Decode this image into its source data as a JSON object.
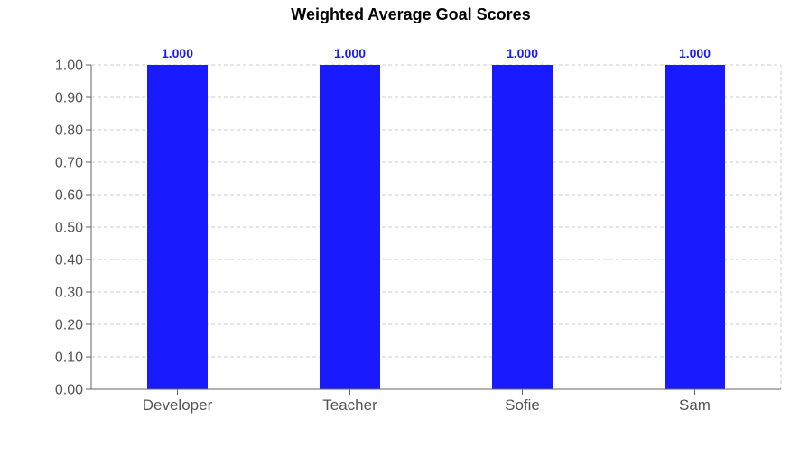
{
  "chart_data": {
    "type": "bar",
    "title": "Weighted Average Goal Scores",
    "xlabel": "",
    "ylabel": "",
    "categories": [
      "Developer",
      "Teacher",
      "Sofie",
      "Sam"
    ],
    "values": [
      1.0,
      1.0,
      1.0,
      1.0
    ],
    "data_labels": [
      "1.000",
      "1.000",
      "1.000",
      "1.000"
    ],
    "ylim": [
      0,
      1.0
    ],
    "yticks": [
      0.0,
      0.1,
      0.2,
      0.3,
      0.4,
      0.5,
      0.6,
      0.7,
      0.8,
      0.9,
      1.0
    ],
    "ytick_labels": [
      "0.00",
      "0.10",
      "0.20",
      "0.30",
      "0.40",
      "0.50",
      "0.60",
      "0.70",
      "0.80",
      "0.90",
      "1.00"
    ],
    "grid": true,
    "legend": "none",
    "colors": {
      "bar": "#1a1aff",
      "value_label": "#1a1aff",
      "grid": "#cccccc",
      "axis": "#666666"
    }
  }
}
